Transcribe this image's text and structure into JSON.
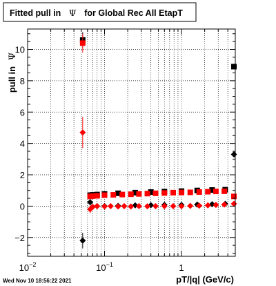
{
  "chart_data": {
    "type": "scatter",
    "title": "Fitted pull in Ψ for Global Rec All EtapT",
    "title_prefix": "Fitted pull in",
    "title_symbol": "Ψ",
    "title_suffix": "for Global Rec All EtapT",
    "xlabel": "pT/|q| (GeV/c)",
    "ylabel_prefix": "pull in",
    "ylabel_symbol": "Ψ",
    "x_scale": "log",
    "xlim": [
      0.01,
      5.0
    ],
    "ylim": [
      -3.2,
      11.3
    ],
    "grid": true,
    "x_ticks": [
      {
        "value": 0.01,
        "base": "10",
        "exp": "−2"
      },
      {
        "value": 0.1,
        "base": "10",
        "exp": "−1"
      },
      {
        "value": 1,
        "base": "1",
        "exp": ""
      }
    ],
    "y_ticks": [
      {
        "value": -2,
        "label": "−2"
      },
      {
        "value": 0,
        "label": "0"
      },
      {
        "value": 2,
        "label": "2"
      },
      {
        "value": 4,
        "label": "4"
      },
      {
        "value": 6,
        "label": "6"
      },
      {
        "value": 8,
        "label": "8"
      },
      {
        "value": 10,
        "label": "10"
      }
    ],
    "series": [
      {
        "marker": "square",
        "color": "#000000",
        "points": [
          {
            "x": 0.052,
            "y": 10.6,
            "yerr": 0.5
          },
          {
            "x": 0.065,
            "y": 0.7
          },
          {
            "x": 0.07,
            "y": 0.72
          },
          {
            "x": 0.08,
            "y": 0.74
          },
          {
            "x": 0.1,
            "y": 0.78
          },
          {
            "x": 0.15,
            "y": 0.82
          },
          {
            "x": 0.25,
            "y": 0.86
          },
          {
            "x": 0.4,
            "y": 0.9
          },
          {
            "x": 0.6,
            "y": 0.93
          },
          {
            "x": 1.0,
            "y": 0.96
          },
          {
            "x": 1.6,
            "y": 1.0
          },
          {
            "x": 2.5,
            "y": 1.03
          },
          {
            "x": 3.7,
            "y": 1.05
          },
          {
            "x": 4.8,
            "y": 8.9
          }
        ]
      },
      {
        "marker": "square",
        "color": "#ff0000",
        "points": [
          {
            "x": 0.052,
            "y": 10.4,
            "yerr": 0.6
          },
          {
            "x": 0.065,
            "y": 0.62
          },
          {
            "x": 0.07,
            "y": 0.64
          },
          {
            "x": 0.08,
            "y": 0.66
          },
          {
            "x": 0.1,
            "y": 0.7
          },
          {
            "x": 0.13,
            "y": 0.72
          },
          {
            "x": 0.17,
            "y": 0.74
          },
          {
            "x": 0.22,
            "y": 0.76
          },
          {
            "x": 0.28,
            "y": 0.78
          },
          {
            "x": 0.36,
            "y": 0.8
          },
          {
            "x": 0.46,
            "y": 0.82
          },
          {
            "x": 0.6,
            "y": 0.84
          },
          {
            "x": 0.78,
            "y": 0.86
          },
          {
            "x": 1.0,
            "y": 0.87
          },
          {
            "x": 1.3,
            "y": 0.88
          },
          {
            "x": 1.7,
            "y": 0.9
          },
          {
            "x": 2.2,
            "y": 0.92
          },
          {
            "x": 2.8,
            "y": 0.94
          },
          {
            "x": 3.6,
            "y": 0.95
          },
          {
            "x": 4.8,
            "y": 0.62
          }
        ]
      },
      {
        "marker": "diamond",
        "color": "#000000",
        "points": [
          {
            "x": 0.052,
            "y": -2.2,
            "yerr": 0.5
          },
          {
            "x": 0.065,
            "y": 0.25,
            "yerr": 0.2
          },
          {
            "x": 0.07,
            "y": -0.05
          },
          {
            "x": 0.08,
            "y": 0.0
          },
          {
            "x": 0.1,
            "y": 0.0
          },
          {
            "x": 0.15,
            "y": 0.02
          },
          {
            "x": 0.25,
            "y": 0.05
          },
          {
            "x": 0.4,
            "y": 0.06
          },
          {
            "x": 0.6,
            "y": 0.08
          },
          {
            "x": 1.0,
            "y": 0.08
          },
          {
            "x": 1.6,
            "y": 0.1
          },
          {
            "x": 2.5,
            "y": 0.12
          },
          {
            "x": 3.7,
            "y": 0.15
          },
          {
            "x": 4.8,
            "y": 3.3
          }
        ]
      },
      {
        "marker": "diamond",
        "color": "#ff0000",
        "points": [
          {
            "x": 0.052,
            "y": 4.7,
            "yerr": 1.0
          },
          {
            "x": 0.065,
            "y": -0.2,
            "yerr": 0.25
          },
          {
            "x": 0.07,
            "y": -0.05
          },
          {
            "x": 0.08,
            "y": 0.0
          },
          {
            "x": 0.1,
            "y": -0.02
          },
          {
            "x": 0.12,
            "y": 0.0
          },
          {
            "x": 0.15,
            "y": -0.02
          },
          {
            "x": 0.18,
            "y": 0.0
          },
          {
            "x": 0.22,
            "y": -0.02
          },
          {
            "x": 0.28,
            "y": 0.0
          },
          {
            "x": 0.36,
            "y": -0.01
          },
          {
            "x": 0.46,
            "y": 0.0
          },
          {
            "x": 0.6,
            "y": 0.0
          },
          {
            "x": 0.78,
            "y": 0.0
          },
          {
            "x": 1.0,
            "y": 0.0
          },
          {
            "x": 1.3,
            "y": 0.02
          },
          {
            "x": 1.7,
            "y": 0.03
          },
          {
            "x": 2.2,
            "y": 0.05
          },
          {
            "x": 2.8,
            "y": 0.08
          },
          {
            "x": 3.6,
            "y": 0.1
          },
          {
            "x": 4.8,
            "y": 0.15
          }
        ]
      }
    ]
  },
  "footer": {
    "timestamp": "Wed Nov 10 18:56:22 2021"
  }
}
